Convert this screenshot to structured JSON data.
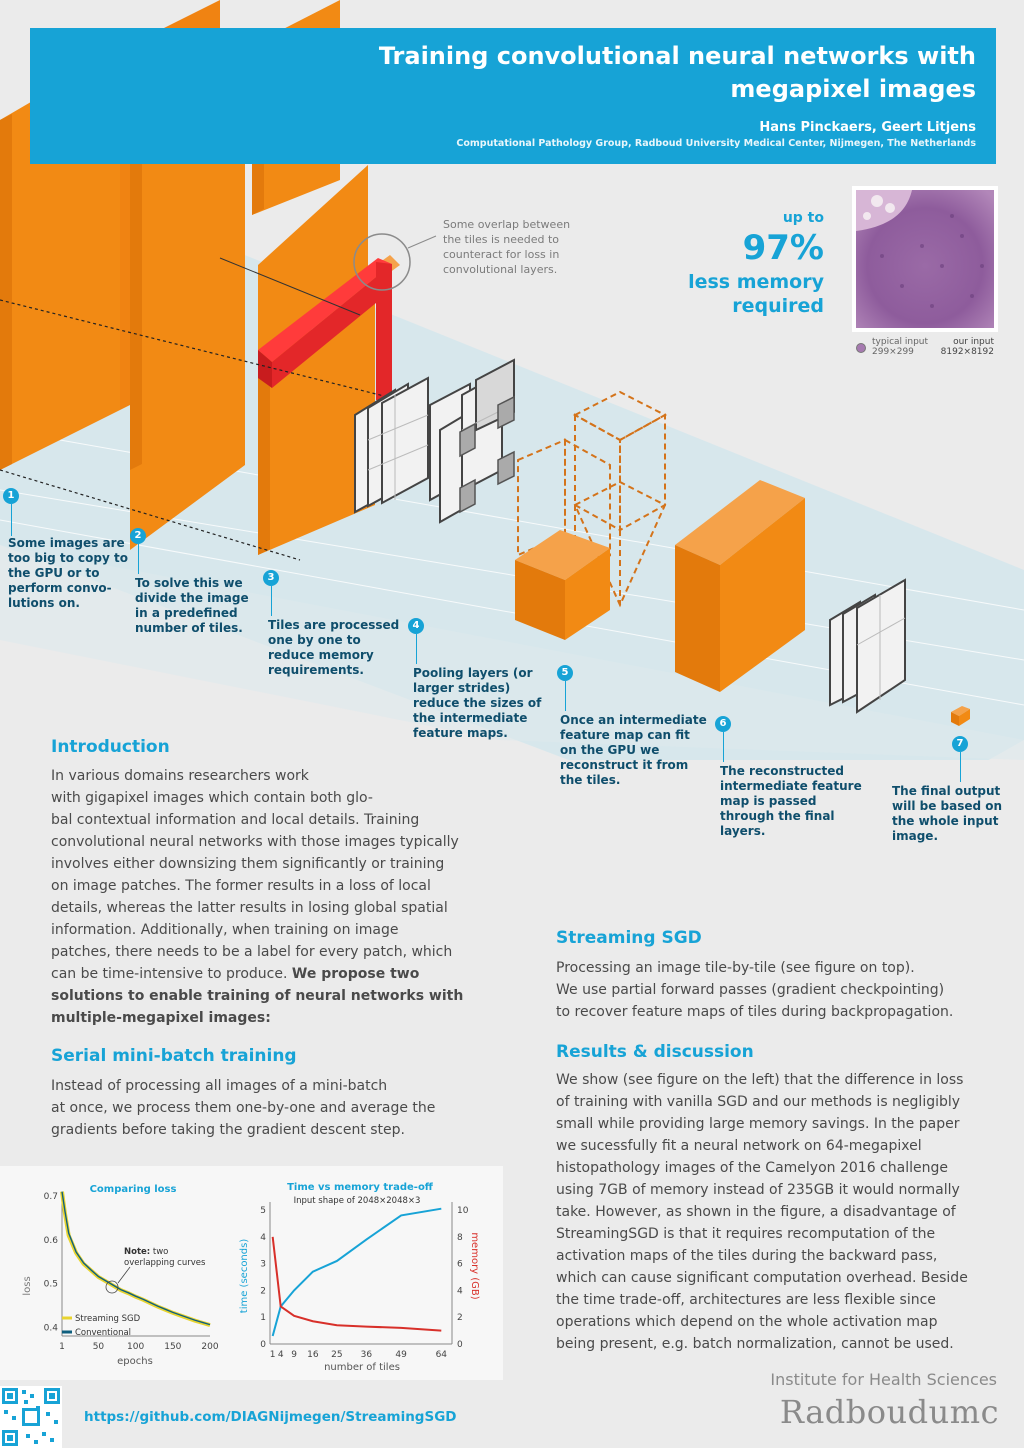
{
  "header": {
    "title_line1": "Training convolutional neural networks with",
    "title_line2": "megapixel images",
    "authors": "Hans Pinckaers, Geert Litjens",
    "affiliation": "Computational Pathology Group, Radboud University Medical Center, Nijmegen, The Netherlands"
  },
  "memory": {
    "up_to": "up to",
    "percent": "97%",
    "line1": "less memory",
    "line2": "required"
  },
  "thumbnail": {
    "typical_label": "typical input",
    "typical_size": "299×299",
    "our_label": "our input",
    "our_size": "8192×8192"
  },
  "overlap_callout": [
    "Some overlap between",
    "the tiles is needed to",
    "counteract for loss in",
    "convolutional layers."
  ],
  "steps": [
    {
      "num": "1",
      "lines": [
        "Some images are",
        "too big to copy to",
        "the GPU or to",
        "perform convo-",
        "lutions on."
      ]
    },
    {
      "num": "2",
      "lines": [
        "To solve this we",
        "divide the image",
        "in a predefined",
        "number of tiles."
      ]
    },
    {
      "num": "3",
      "lines": [
        "Tiles are processed",
        "one by one to",
        "reduce memory",
        "requirements."
      ]
    },
    {
      "num": "4",
      "lines": [
        "Pooling layers (or",
        "larger strides)",
        "reduce the sizes of",
        "the intermediate",
        "feature maps."
      ]
    },
    {
      "num": "5",
      "lines": [
        "Once an intermediate",
        "feature map can fit",
        "on the GPU we",
        "reconstruct it from",
        "the tiles."
      ]
    },
    {
      "num": "6",
      "lines": [
        "The reconstructed",
        "intermediate feature",
        "map is passed",
        "through the final",
        "layers."
      ]
    },
    {
      "num": "7",
      "lines": [
        "The final output",
        "will be based on",
        "the whole input",
        "image."
      ]
    }
  ],
  "intro": {
    "heading": "Introduction",
    "lines": [
      "In various domains researchers work",
      "with gigapixel images which contain both glo-",
      "bal contextual information and local details. Training",
      "convolutional neural networks with those images typically",
      "involves either downsizing them significantly or training",
      "on image patches. The former results in a loss of local",
      "details, whereas the latter results in losing global spatial",
      "information. Additionally, when training on image",
      "patches, there needs to be a label for every patch, which",
      "can be time-intensive to produce."
    ],
    "bold_inline": "We propose two",
    "bold_lines": [
      "solutions to enable training of neural networks with",
      "multiple-megapixel images:"
    ]
  },
  "serial": {
    "heading": "Serial mini-batch training",
    "lines": [
      "Instead of processing all images of a mini-batch",
      "at once, we process them one-by-one and average the",
      "gradients before taking the gradient descent step."
    ]
  },
  "streaming": {
    "heading": "Streaming SGD",
    "lines": [
      "Processing an image tile-by-tile (see figure on top).",
      "We use partial forward passes (gradient checkpointing)",
      "to recover feature maps of tiles during backpropagation."
    ]
  },
  "results": {
    "heading": "Results & discussion",
    "lines": [
      "We show (see figure on the left) that the difference in loss",
      "of training with vanilla SGD and our methods is negligibly",
      "small while providing large memory savings. In the paper",
      "we sucessfully fit a neural network on 64-megapixel",
      "histopathology images of the Camelyon 2016 challenge",
      "using 7GB of memory instead of 235GB it would normally",
      "take. However, as shown in the figure, a disadvantage of",
      "StreamingSGD is that it requires recomputation of the",
      "activation maps of the tiles during the backward pass,",
      "which can cause significant computation overhead. Beside",
      "the time trade-off, architectures are less flexible since",
      "operations which depend on the whole activation map",
      "being present, e.g. batch normalization, cannot be used."
    ]
  },
  "footer": {
    "url": "https://github.com/DIAGNijmegen/StreamingSGD",
    "institute": "Institute for Health Sciences",
    "brand": "Radboudumc"
  },
  "colors": {
    "accent": "#17a3d6",
    "orange": "#f28a14",
    "red": "#e32729",
    "dark_blue": "#0f4e6c",
    "yellow": "#e8d430",
    "memory_red": "#d8302a"
  },
  "chart_data": [
    {
      "type": "line",
      "title": "Comparing loss",
      "xlabel": "epochs",
      "ylabel": "loss",
      "xticks": [
        1,
        50,
        100,
        150,
        200
      ],
      "yticks": [
        0.4,
        0.5,
        0.6,
        0.7
      ],
      "xlim": [
        1,
        200
      ],
      "ylim": [
        0.38,
        0.7
      ],
      "annotation_bold": "Note:",
      "annotation_rest": " two",
      "annotation_line2": "overlapping curves",
      "series": [
        {
          "name": "Streaming SGD",
          "color": "#e8d430",
          "x": [
            1,
            5,
            10,
            20,
            30,
            40,
            50,
            60,
            70,
            80,
            90,
            100,
            110,
            120,
            130,
            140,
            150,
            160,
            170,
            180,
            190,
            200
          ],
          "y": [
            0.71,
            0.66,
            0.61,
            0.57,
            0.545,
            0.53,
            0.515,
            0.505,
            0.495,
            0.485,
            0.478,
            0.47,
            0.463,
            0.455,
            0.447,
            0.44,
            0.433,
            0.427,
            0.421,
            0.415,
            0.41,
            0.405
          ]
        },
        {
          "name": "Conventional",
          "color": "#0f5f7e",
          "x": [
            1,
            5,
            10,
            20,
            30,
            40,
            50,
            60,
            70,
            80,
            90,
            100,
            110,
            120,
            130,
            140,
            150,
            160,
            170,
            180,
            190,
            200
          ],
          "y": [
            0.71,
            0.665,
            0.615,
            0.572,
            0.547,
            0.531,
            0.516,
            0.506,
            0.496,
            0.486,
            0.479,
            0.471,
            0.464,
            0.456,
            0.448,
            0.441,
            0.434,
            0.428,
            0.422,
            0.416,
            0.411,
            0.406
          ]
        }
      ]
    },
    {
      "type": "line",
      "title": "Time vs memory trade-off",
      "subtitle": "Input shape of 2048×2048×3",
      "xlabel": "number of tiles",
      "ylabel_left": "time (seconds)",
      "ylabel_right": "memory (GB)",
      "xticks": [
        1,
        4,
        9,
        16,
        25,
        36,
        49,
        64
      ],
      "yticks_left": [
        0,
        1,
        2,
        3,
        4,
        5
      ],
      "yticks_right": [
        0,
        2,
        4,
        6,
        8,
        10
      ],
      "xlim": [
        0,
        68
      ],
      "ylim_left": [
        0,
        5.3
      ],
      "ylim_right": [
        0,
        10.6
      ],
      "series": [
        {
          "name": "time (seconds)",
          "axis": "left",
          "color": "#17a3d6",
          "x": [
            1,
            4,
            9,
            16,
            25,
            36,
            49,
            64
          ],
          "y": [
            0.3,
            1.4,
            2.0,
            2.7,
            3.1,
            3.9,
            4.8,
            5.05
          ]
        },
        {
          "name": "memory (GB)",
          "axis": "right",
          "color": "#d8302a",
          "x": [
            1,
            4,
            9,
            16,
            25,
            36,
            49,
            64
          ],
          "y": [
            8.0,
            2.8,
            2.1,
            1.7,
            1.4,
            1.3,
            1.2,
            1.0
          ]
        }
      ]
    }
  ]
}
